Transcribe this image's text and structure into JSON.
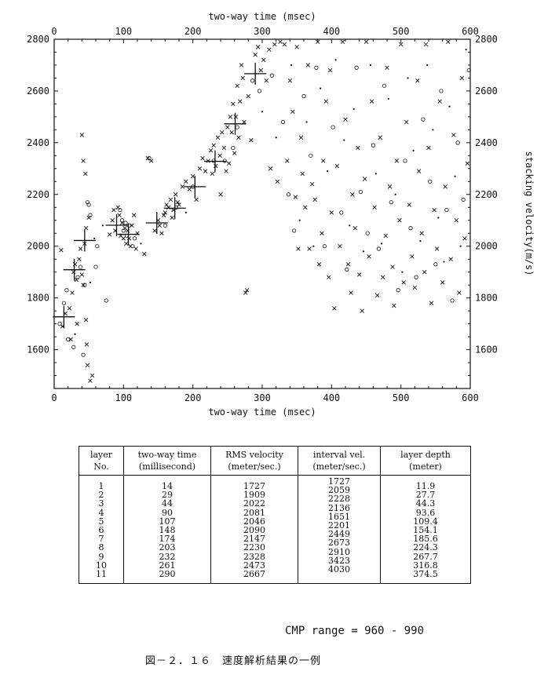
{
  "chart_data": {
    "type": "scatter",
    "xlabel_top": "two-way time (msec)",
    "xlabel_bottom": "two-way time (msec)",
    "ylabel_right": "stacking velocity(m/s)",
    "xlim": [
      0,
      600
    ],
    "ylim": [
      1450,
      2800
    ],
    "x_ticks": [
      0,
      100,
      200,
      300,
      400,
      500,
      600
    ],
    "y_ticks_left": [
      1600,
      1800,
      2000,
      2200,
      2400,
      2600,
      2800
    ],
    "y_ticks_right": [
      1600,
      1800,
      2000,
      2200,
      2400,
      2600,
      2800
    ],
    "picks": {
      "name": "picked velocity",
      "points": [
        [
          14,
          1727
        ],
        [
          29,
          1909
        ],
        [
          44,
          2022
        ],
        [
          90,
          2081
        ],
        [
          107,
          2046
        ],
        [
          148,
          2090
        ],
        [
          174,
          2147
        ],
        [
          203,
          2230
        ],
        [
          232,
          2328
        ],
        [
          261,
          2473
        ],
        [
          290,
          2667
        ]
      ]
    },
    "semblance_points": {
      "x_marks": [
        [
          10,
          1985
        ],
        [
          12,
          1690
        ],
        [
          16,
          1740
        ],
        [
          22,
          1760
        ],
        [
          24,
          1640
        ],
        [
          26,
          1820
        ],
        [
          28,
          1900
        ],
        [
          30,
          1930
        ],
        [
          32,
          1870
        ],
        [
          33,
          1700
        ],
        [
          36,
          1950
        ],
        [
          38,
          1990
        ],
        [
          40,
          1890
        ],
        [
          42,
          1850
        ],
        [
          44,
          2010
        ],
        [
          46,
          2070
        ],
        [
          47,
          1620
        ],
        [
          48,
          1540
        ],
        [
          50,
          2110
        ],
        [
          52,
          1480
        ],
        [
          55,
          1500
        ],
        [
          40,
          2430
        ],
        [
          42,
          2330
        ],
        [
          45,
          2280
        ],
        [
          46,
          1715
        ],
        [
          80,
          2045
        ],
        [
          84,
          2100
        ],
        [
          86,
          2140
        ],
        [
          88,
          2060
        ],
        [
          92,
          2150
        ],
        [
          94,
          2120
        ],
        [
          96,
          2040
        ],
        [
          98,
          2090
        ],
        [
          100,
          2030
        ],
        [
          102,
          2070
        ],
        [
          104,
          2010
        ],
        [
          106,
          2060
        ],
        [
          108,
          2030
        ],
        [
          110,
          2000
        ],
        [
          112,
          2080
        ],
        [
          115,
          2120
        ],
        [
          118,
          1990
        ],
        [
          120,
          2050
        ],
        [
          130,
          1970
        ],
        [
          135,
          2340
        ],
        [
          140,
          2330
        ],
        [
          145,
          2060
        ],
        [
          150,
          2100
        ],
        [
          152,
          2080
        ],
        [
          155,
          2050
        ],
        [
          158,
          2120
        ],
        [
          160,
          2130
        ],
        [
          162,
          2160
        ],
        [
          165,
          2150
        ],
        [
          168,
          2180
        ],
        [
          170,
          2110
        ],
        [
          172,
          2140
        ],
        [
          175,
          2200
        ],
        [
          178,
          2170
        ],
        [
          180,
          2160
        ],
        [
          185,
          2230
        ],
        [
          190,
          2250
        ],
        [
          195,
          2220
        ],
        [
          200,
          2270
        ],
        [
          205,
          2180
        ],
        [
          210,
          2300
        ],
        [
          214,
          2340
        ],
        [
          218,
          2290
        ],
        [
          222,
          2330
        ],
        [
          226,
          2370
        ],
        [
          228,
          2280
        ],
        [
          230,
          2390
        ],
        [
          233,
          2310
        ],
        [
          236,
          2420
        ],
        [
          239,
          2350
        ],
        [
          240,
          2200
        ],
        [
          242,
          2440
        ],
        [
          245,
          2380
        ],
        [
          248,
          2290
        ],
        [
          250,
          2460
        ],
        [
          252,
          2320
        ],
        [
          254,
          2500
        ],
        [
          256,
          2440
        ],
        [
          258,
          2550
        ],
        [
          260,
          2360
        ],
        [
          262,
          2500
        ],
        [
          264,
          2620
        ],
        [
          266,
          2420
        ],
        [
          268,
          2560
        ],
        [
          270,
          2700
        ],
        [
          272,
          2650
        ],
        [
          274,
          2480
        ],
        [
          276,
          1820
        ],
        [
          278,
          1830
        ],
        [
          280,
          2580
        ],
        [
          284,
          2410
        ],
        [
          290,
          2740
        ],
        [
          294,
          2770
        ],
        [
          298,
          2680
        ],
        [
          302,
          2720
        ],
        [
          306,
          2640
        ],
        [
          310,
          2760
        ],
        [
          312,
          2300
        ],
        [
          318,
          2780
        ],
        [
          322,
          2250
        ],
        [
          326,
          2790
        ],
        [
          332,
          2780
        ],
        [
          336,
          2330
        ],
        [
          340,
          2640
        ],
        [
          344,
          2520
        ],
        [
          348,
          2190
        ],
        [
          350,
          2770
        ],
        [
          352,
          1990
        ],
        [
          356,
          2420
        ],
        [
          358,
          2280
        ],
        [
          362,
          2150
        ],
        [
          366,
          2700
        ],
        [
          368,
          1990
        ],
        [
          372,
          2240
        ],
        [
          376,
          2180
        ],
        [
          380,
          2790
        ],
        [
          382,
          1930
        ],
        [
          386,
          2050
        ],
        [
          388,
          2330
        ],
        [
          392,
          2560
        ],
        [
          396,
          1880
        ],
        [
          398,
          2680
        ],
        [
          400,
          2130
        ],
        [
          404,
          1760
        ],
        [
          408,
          2310
        ],
        [
          412,
          2000
        ],
        [
          416,
          2790
        ],
        [
          420,
          2490
        ],
        [
          424,
          1930
        ],
        [
          428,
          1820
        ],
        [
          430,
          2200
        ],
        [
          434,
          2070
        ],
        [
          438,
          2380
        ],
        [
          440,
          1890
        ],
        [
          444,
          1750
        ],
        [
          448,
          2260
        ],
        [
          450,
          2790
        ],
        [
          454,
          1960
        ],
        [
          458,
          2560
        ],
        [
          462,
          2150
        ],
        [
          466,
          1810
        ],
        [
          470,
          2420
        ],
        [
          474,
          1880
        ],
        [
          478,
          2040
        ],
        [
          480,
          2690
        ],
        [
          484,
          2230
        ],
        [
          488,
          1920
        ],
        [
          490,
          1770
        ],
        [
          494,
          2330
        ],
        [
          498,
          2100
        ],
        [
          500,
          2780
        ],
        [
          504,
          1860
        ],
        [
          508,
          2480
        ],
        [
          512,
          2160
        ],
        [
          516,
          1960
        ],
        [
          520,
          1840
        ],
        [
          524,
          2640
        ],
        [
          526,
          2290
        ],
        [
          530,
          2050
        ],
        [
          534,
          1900
        ],
        [
          536,
          2780
        ],
        [
          540,
          2380
        ],
        [
          544,
          1780
        ],
        [
          548,
          2140
        ],
        [
          552,
          1990
        ],
        [
          556,
          2560
        ],
        [
          560,
          1860
        ],
        [
          564,
          2230
        ],
        [
          568,
          2790
        ],
        [
          572,
          1950
        ],
        [
          576,
          2430
        ],
        [
          580,
          2100
        ],
        [
          584,
          1820
        ],
        [
          588,
          2650
        ],
        [
          592,
          2030
        ],
        [
          596,
          2320
        ]
      ],
      "o_marks": [
        [
          8,
          1700
        ],
        [
          14,
          1780
        ],
        [
          18,
          1830
        ],
        [
          20,
          1640
        ],
        [
          28,
          1610
        ],
        [
          34,
          1880
        ],
        [
          38,
          1920
        ],
        [
          42,
          1580
        ],
        [
          44,
          1850
        ],
        [
          50,
          2160
        ],
        [
          52,
          2120
        ],
        [
          48,
          2170
        ],
        [
          60,
          1920
        ],
        [
          62,
          2000
        ],
        [
          75,
          1790
        ],
        [
          95,
          2140
        ],
        [
          98,
          2100
        ],
        [
          100,
          2060
        ],
        [
          103,
          2090
        ],
        [
          105,
          2040
        ],
        [
          108,
          2080
        ],
        [
          113,
          2000
        ],
        [
          116,
          2030
        ],
        [
          137,
          2340
        ],
        [
          160,
          2080
        ],
        [
          176,
          2150
        ],
        [
          200,
          2230
        ],
        [
          230,
          2330
        ],
        [
          246,
          2330
        ],
        [
          258,
          2380
        ],
        [
          264,
          2460
        ],
        [
          286,
          2640
        ],
        [
          296,
          2600
        ],
        [
          314,
          2660
        ],
        [
          330,
          2480
        ],
        [
          338,
          2200
        ],
        [
          346,
          2060
        ],
        [
          360,
          2580
        ],
        [
          370,
          2350
        ],
        [
          378,
          2690
        ],
        [
          390,
          2000
        ],
        [
          402,
          2460
        ],
        [
          414,
          2130
        ],
        [
          422,
          1910
        ],
        [
          436,
          2690
        ],
        [
          442,
          2210
        ],
        [
          452,
          2050
        ],
        [
          460,
          2390
        ],
        [
          468,
          1990
        ],
        [
          476,
          2620
        ],
        [
          486,
          2170
        ],
        [
          496,
          1830
        ],
        [
          506,
          2330
        ],
        [
          514,
          2070
        ],
        [
          522,
          1880
        ],
        [
          532,
          2490
        ],
        [
          542,
          2250
        ],
        [
          550,
          1930
        ],
        [
          558,
          2600
        ],
        [
          566,
          2140
        ],
        [
          574,
          1790
        ],
        [
          582,
          2400
        ],
        [
          590,
          2180
        ],
        [
          598,
          2680
        ]
      ],
      "dot_marks": [
        [
          30,
          1660
        ],
        [
          52,
          1860
        ],
        [
          58,
          2030
        ],
        [
          70,
          2080
        ],
        [
          125,
          2010
        ],
        [
          190,
          2130
        ],
        [
          300,
          2520
        ],
        [
          320,
          2420
        ],
        [
          342,
          2700
        ],
        [
          354,
          2100
        ],
        [
          364,
          2480
        ],
        [
          374,
          2000
        ],
        [
          384,
          2610
        ],
        [
          394,
          2290
        ],
        [
          406,
          2720
        ],
        [
          418,
          2410
        ],
        [
          426,
          2080
        ],
        [
          432,
          2530
        ],
        [
          446,
          1980
        ],
        [
          456,
          2700
        ],
        [
          464,
          2280
        ],
        [
          472,
          2010
        ],
        [
          482,
          2570
        ],
        [
          492,
          2200
        ],
        [
          502,
          1900
        ],
        [
          510,
          2650
        ],
        [
          518,
          2370
        ],
        [
          528,
          2020
        ],
        [
          538,
          2700
        ],
        [
          546,
          2450
        ],
        [
          554,
          2110
        ],
        [
          562,
          1940
        ],
        [
          570,
          2540
        ],
        [
          578,
          2270
        ],
        [
          586,
          2000
        ],
        [
          594,
          2760
        ]
      ]
    }
  },
  "table": {
    "headers": [
      {
        "line1": "layer",
        "line2": "No."
      },
      {
        "line1": "two-way time",
        "line2": "(millisecond)"
      },
      {
        "line1": "RMS velocity",
        "line2": "(meter/sec.)"
      },
      {
        "line1": "interval vel.",
        "line2": "(meter/sec.)"
      },
      {
        "line1": "layer depth",
        "line2": "(meter)"
      }
    ],
    "layers": [
      "1",
      "2",
      "3",
      "4",
      "5",
      "6",
      "7",
      "8",
      "9",
      "10",
      "11"
    ],
    "times": [
      "14",
      "29",
      "44",
      "90",
      "107",
      "148",
      "174",
      "203",
      "232",
      "261",
      "290"
    ],
    "rms": [
      "1727",
      "1909",
      "2022",
      "2081",
      "2046",
      "2090",
      "2147",
      "2230",
      "2328",
      "2473",
      "2667"
    ],
    "interval": [
      "1727",
      "2059",
      "2228",
      "2136",
      "1651",
      "2201",
      "2449",
      "2673",
      "2910",
      "3423",
      "4030"
    ],
    "depth": [
      "11.9",
      "27.7",
      "44.3",
      "93.6",
      "109.4",
      "154.1",
      "185.6",
      "224.3",
      "267.7",
      "316.8",
      "374.5"
    ]
  },
  "cmp_range": "CMP range = 960 - 990",
  "caption": "図－２．１６　速度解析結果の一例"
}
